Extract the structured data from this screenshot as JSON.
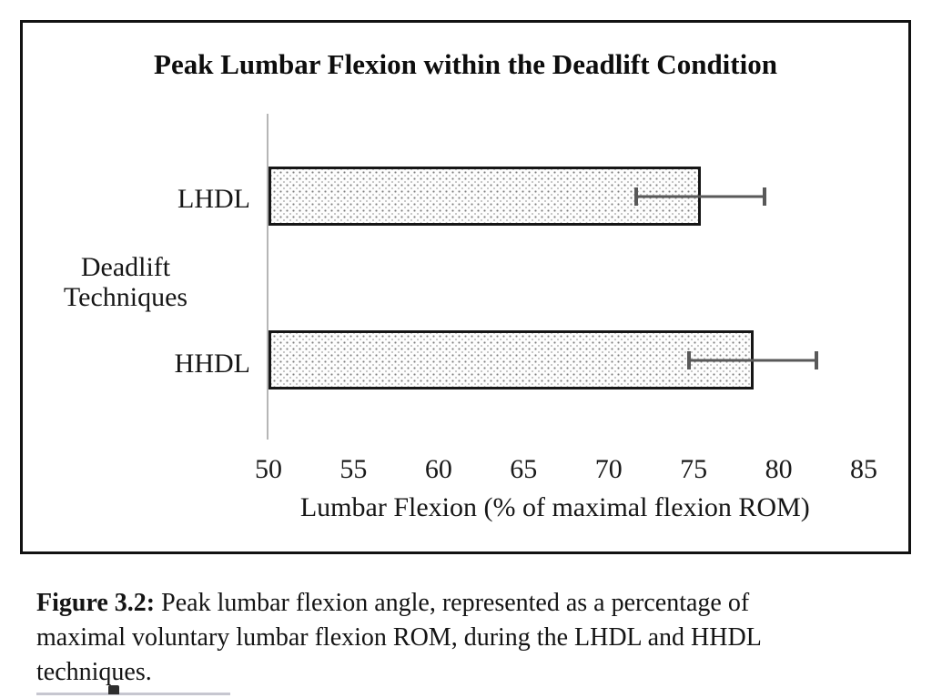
{
  "chart_data": {
    "type": "bar",
    "orientation": "horizontal",
    "title": "Peak Lumbar Flexion within the Deadlift Condition",
    "categories": [
      "LHDL",
      "HHDL"
    ],
    "values": [
      75.4,
      78.5
    ],
    "error_bars": {
      "low": [
        71.5,
        74.6
      ],
      "high": [
        79.3,
        82.3
      ]
    },
    "xlabel": "Lumbar Flexion (% of maximal flexion ROM)",
    "ylabel": [
      "Deadlift",
      "Techniques"
    ],
    "xlim": [
      50,
      85
    ],
    "xticks": [
      50,
      55,
      60,
      65,
      70,
      75,
      80,
      85
    ],
    "grid": false,
    "legend": "none",
    "bar_fill": "light-dotted-stipple",
    "bar_border_color": "#161616",
    "error_bar_color": "#595959",
    "axis_line_color": "#b6b6b6"
  },
  "caption": {
    "label": "Figure 3.2:",
    "lines": [
      "Peak lumbar flexion angle, represented as a percentage of",
      "maximal voluntary lumbar flexion ROM, during the LHDL and HHDL",
      "techniques."
    ]
  }
}
